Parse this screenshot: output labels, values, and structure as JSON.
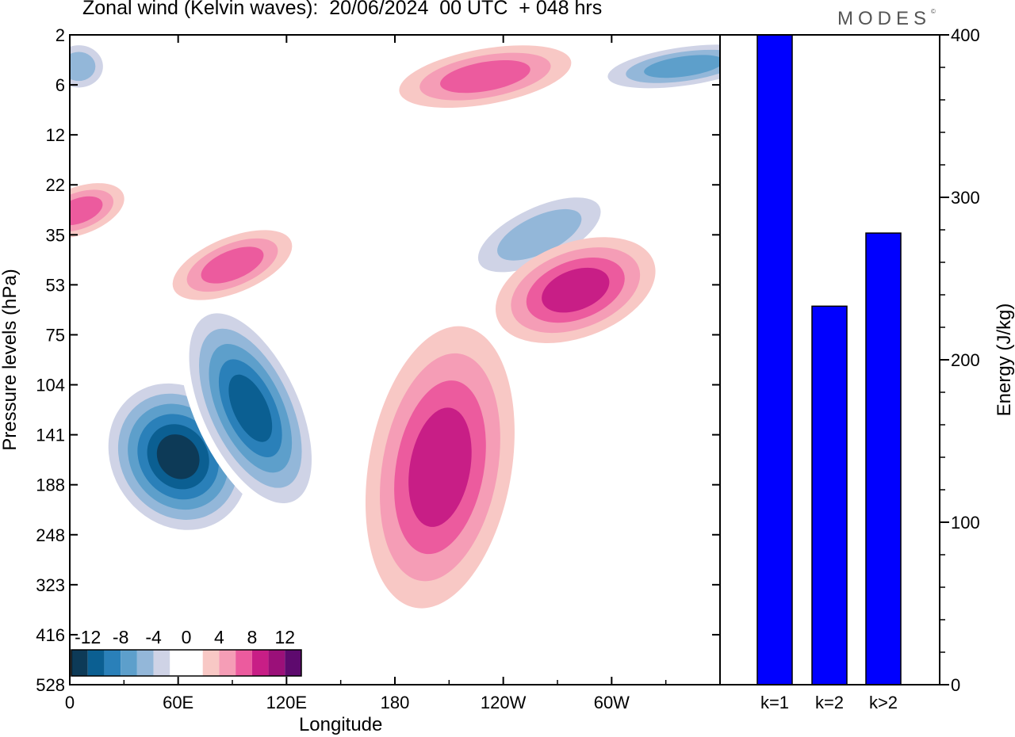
{
  "title": "Zonal wind (Kelvin waves):  20/06/2024  00 UTC  + 048 hrs",
  "brand": "MODES",
  "brand_mark": "©",
  "chart_data": [
    {
      "type": "heatmap",
      "xlabel": "Longitude",
      "ylabel": "Pressure levels (hPa)",
      "x_ticks": [
        "0",
        "60E",
        "120E",
        "180",
        "120W",
        "60W"
      ],
      "y_ticks": [
        "2",
        "6",
        "12",
        "22",
        "35",
        "53",
        "75",
        "104",
        "141",
        "188",
        "248",
        "323",
        "416",
        "528"
      ],
      "colorbar": {
        "labels": [
          "-12",
          "-8",
          "-4",
          "0",
          "4",
          "8",
          "12"
        ],
        "colors": [
          "#0d3a57",
          "#0b5f92",
          "#2a80b9",
          "#5d9fcb",
          "#93b7d9",
          "#cfd3e6",
          "#ffffff",
          "#ffffff",
          "#f8c8c5",
          "#f59db6",
          "#ec5b9e",
          "#c81e86",
          "#9b1079",
          "#5e0a6e"
        ]
      },
      "features": [
        {
          "sign": "negative",
          "peak": -14,
          "lon": 60,
          "level": 160
        },
        {
          "sign": "negative",
          "peak": -12,
          "lon": 100,
          "level": 120
        },
        {
          "sign": "negative",
          "peak": -8,
          "lon": 340,
          "level": 4
        },
        {
          "sign": "negative",
          "peak": -6,
          "lon": 260,
          "level": 35
        },
        {
          "sign": "negative",
          "peak": -6,
          "lon": 5,
          "level": 4
        },
        {
          "sign": "positive",
          "peak": 8,
          "lon": 205,
          "level": 170
        },
        {
          "sign": "positive",
          "peak": 7,
          "lon": 280,
          "level": 55
        },
        {
          "sign": "positive",
          "peak": 6,
          "lon": 230,
          "level": 5
        },
        {
          "sign": "positive",
          "peak": 6,
          "lon": 5,
          "level": 28
        },
        {
          "sign": "positive",
          "peak": 5,
          "lon": 90,
          "level": 45
        }
      ]
    },
    {
      "type": "bar",
      "categories": [
        "k=1",
        "k=2",
        "k>2"
      ],
      "values": [
        400,
        233,
        278
      ],
      "ylabel": "Energy (J/kg)",
      "ylim": [
        0,
        400
      ],
      "y_ticks": [
        "0",
        "100",
        "200",
        "300",
        "400"
      ],
      "bar_color": "#0000ff"
    }
  ]
}
